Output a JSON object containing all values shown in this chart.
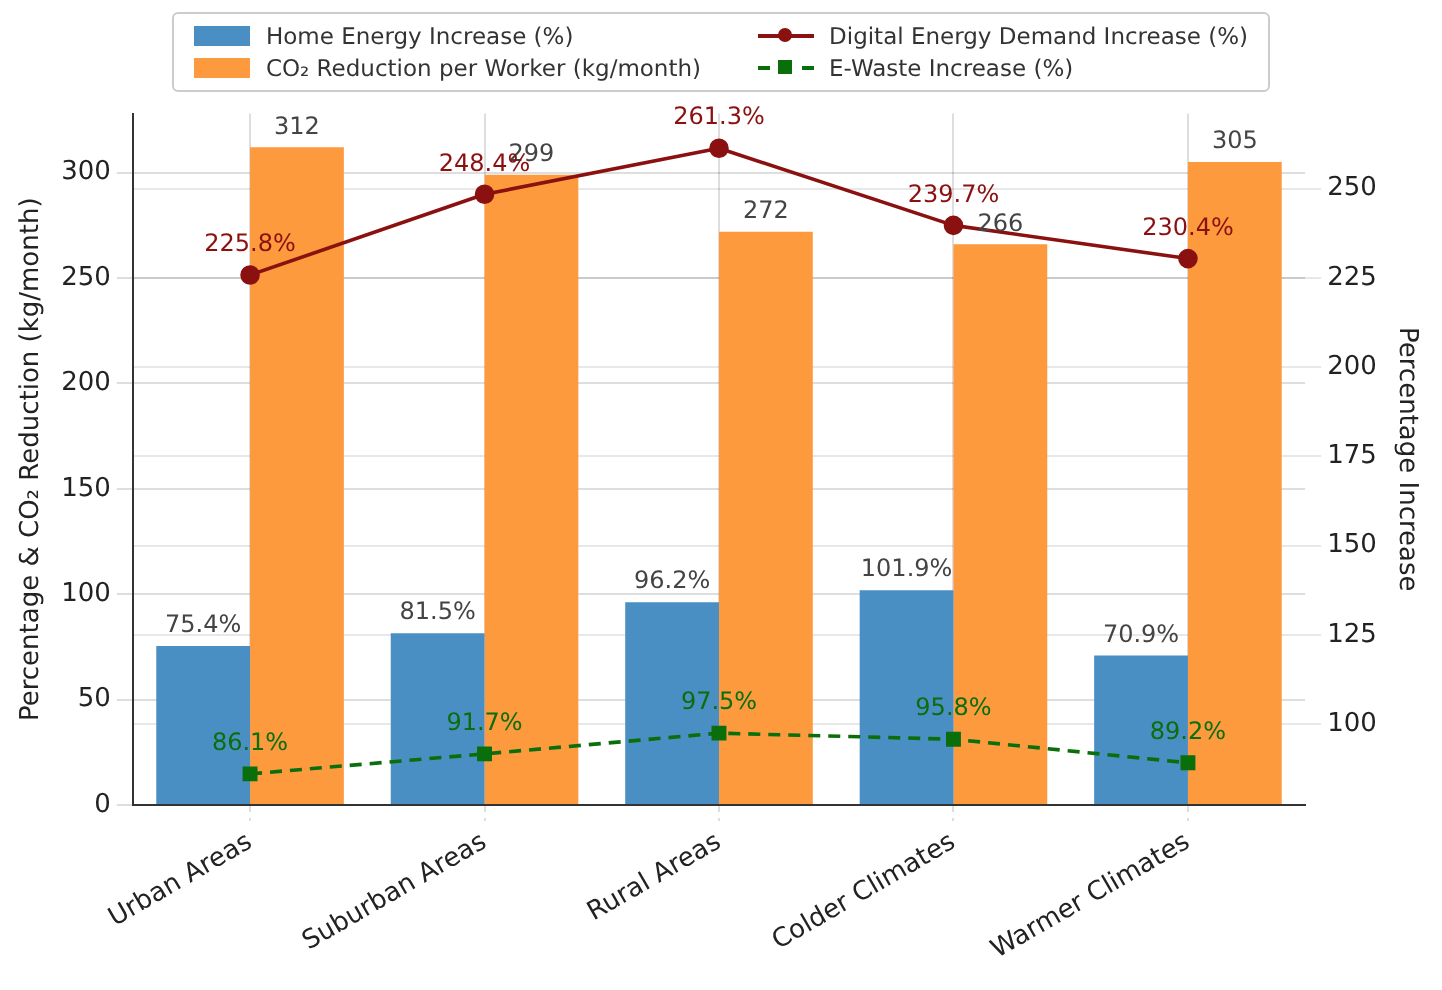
{
  "chart_data": {
    "type": "bar",
    "categories": [
      "Urban Areas",
      "Suburban Areas",
      "Rural Areas",
      "Colder Climates",
      "Warmer Climates"
    ],
    "ylabel": "Percentage & CO₂ Reduction (kg/month)",
    "y2label": "Percentage Increase",
    "ylim": [
      0,
      328
    ],
    "yticks": [
      0,
      50,
      100,
      150,
      200,
      250,
      300
    ],
    "y2lim": [
      77.4,
      271
    ],
    "y2ticks": [
      100,
      125,
      150,
      175,
      200,
      225,
      250
    ],
    "grid": true,
    "legend": "top",
    "series": [
      {
        "name": "Home Energy Increase (%)",
        "color": "#4a8fc4",
        "values": [
          75.4,
          81.5,
          96.2,
          101.9,
          70.9
        ],
        "value_labels": [
          "75.4%",
          "81.5%",
          "96.2%",
          "101.9%",
          "70.9%"
        ]
      },
      {
        "name": "CO₂ Reduction per Worker (kg/month)",
        "color": "#fd9a3e",
        "values": [
          312,
          299,
          272,
          266,
          305
        ],
        "value_labels": [
          "312",
          "299",
          "272",
          "266",
          "305"
        ]
      },
      {
        "name": "Digital Energy Demand Increase (%)",
        "type": "line",
        "axis": "y2",
        "color": "#8b1010",
        "marker": "circle",
        "line_style": "solid",
        "values": [
          225.8,
          248.4,
          261.3,
          239.7,
          230.4
        ],
        "value_labels": [
          "225.8%",
          "248.4%",
          "261.3%",
          "239.7%",
          "230.4%"
        ]
      },
      {
        "name": "E-Waste Increase (%)",
        "type": "line",
        "axis": "y2",
        "color": "#0a6e0a",
        "marker": "square",
        "line_style": "dashed",
        "values": [
          86.1,
          91.7,
          97.5,
          95.8,
          89.2
        ],
        "value_labels": [
          "86.1%",
          "91.7%",
          "97.5%",
          "95.8%",
          "89.2%"
        ]
      }
    ]
  }
}
